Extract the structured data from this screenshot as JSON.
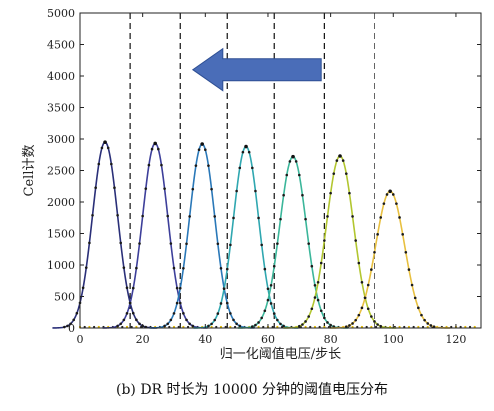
{
  "chart_data": {
    "type": "line",
    "xlabel": "归一化阈值电压/步长",
    "ylabel": "Cell计数",
    "caption": "(b) DR 时长为 10000 分钟的阈值电压分布",
    "xlim": [
      0,
      128
    ],
    "ylim": [
      0,
      5000
    ],
    "xticks": [
      0,
      20,
      40,
      60,
      80,
      100,
      120
    ],
    "yticks": [
      0,
      500,
      1000,
      1500,
      2000,
      2500,
      3000,
      3500,
      4000,
      4500,
      5000
    ],
    "grid": false,
    "series": [
      {
        "peak_x": 8,
        "peak_y": 2950,
        "sigma": 4.0,
        "color": "#2a2f78"
      },
      {
        "peak_x": 24,
        "peak_y": 2930,
        "sigma": 4.0,
        "color": "#3d3f9a"
      },
      {
        "peak_x": 39,
        "peak_y": 2920,
        "sigma": 4.0,
        "color": "#2a78b8"
      },
      {
        "peak_x": 53,
        "peak_y": 2880,
        "sigma": 4.0,
        "color": "#2fa7b0"
      },
      {
        "peak_x": 68,
        "peak_y": 2720,
        "sigma": 4.2,
        "color": "#3bb69a"
      },
      {
        "peak_x": 83,
        "peak_y": 2730,
        "sigma": 4.3,
        "color": "#b2c630"
      },
      {
        "peak_x": 99,
        "peak_y": 2170,
        "sigma": 4.6,
        "color": "#e8c040"
      }
    ],
    "vlines": [
      {
        "x": 16,
        "style": "dashed"
      },
      {
        "x": 32,
        "style": "dashed"
      },
      {
        "x": 47,
        "style": "dashed"
      },
      {
        "x": 62,
        "style": "dashed"
      },
      {
        "x": 78,
        "style": "dashed"
      },
      {
        "x": 94,
        "style": "dashed-thin"
      }
    ],
    "arrow": {
      "x_from": 77,
      "x_to": 36,
      "y": 4100,
      "color": "#4a6db8",
      "direction": "left"
    }
  }
}
